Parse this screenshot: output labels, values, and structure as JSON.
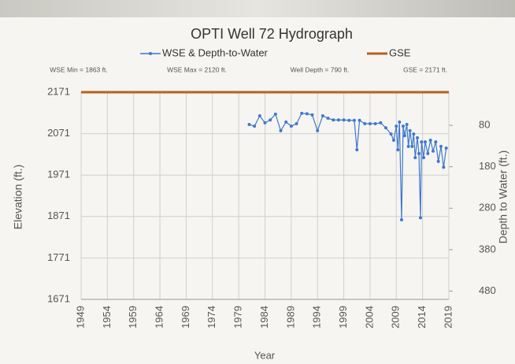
{
  "chart_data": {
    "type": "line",
    "title": "OPTI Well 72 Hydrograph",
    "annotations": [
      "WSE Min = 1863 ft.",
      "WSE Max = 2120 ft.",
      "Well Depth = 790 ft.",
      "GSE = 2171 ft."
    ],
    "xlabel": "Year",
    "ylabel": "Elevation (ft.)",
    "y2label": "Depth to Water (ft.)",
    "xlim": [
      1949,
      2019
    ],
    "xticks": [
      1949,
      1954,
      1959,
      1964,
      1969,
      1974,
      1979,
      1984,
      1989,
      1994,
      1999,
      2004,
      2009,
      2014,
      2019
    ],
    "ylim": [
      1671,
      2171
    ],
    "yticks": [
      1671,
      1771,
      1871,
      1971,
      2071,
      2171
    ],
    "y2lim": [
      500,
      0
    ],
    "y2ticks": [
      80,
      180,
      280,
      380,
      480
    ],
    "grid": true,
    "legend": "top",
    "series": [
      {
        "name": "WSE & Depth-to-Water",
        "color": "#3f78cf",
        "x": [
          1981,
          1982,
          1983,
          1984,
          1985,
          1986,
          1987,
          1988,
          1989,
          1990,
          1991,
          1992,
          1993,
          1994,
          1995,
          1996,
          1997,
          1998,
          1999,
          2000,
          2001,
          2001.5,
          2002,
          2003,
          2004,
          2005,
          2006,
          2007,
          2008,
          2008.5,
          2009,
          2009.3,
          2009.6,
          2010,
          2010.3,
          2010.6,
          2011,
          2011.3,
          2011.6,
          2012,
          2012.3,
          2012.6,
          2013,
          2013.3,
          2013.6,
          2013.8,
          2014.2,
          2014.5,
          2015,
          2015.5,
          2016,
          2016.5,
          2017,
          2017.5,
          2018,
          2018.5
        ],
        "values": [
          2093,
          2089,
          2114,
          2097,
          2104,
          2118,
          2078,
          2099,
          2089,
          2095,
          2120,
          2119,
          2116,
          2078,
          2114,
          2108,
          2104,
          2104,
          2104,
          2103,
          2103,
          2032,
          2103,
          2095,
          2095,
          2095,
          2097,
          2085,
          2070,
          2055,
          2089,
          2032,
          2099,
          1863,
          2089,
          2066,
          2093,
          2040,
          2078,
          2040,
          2070,
          2013,
          2061,
          2023,
          1868,
          2051,
          2013,
          2051,
          2023,
          2055,
          2029,
          2051,
          2004,
          2040,
          1990,
          2036
        ]
      },
      {
        "name": "GSE",
        "color": "#b8601c",
        "x": [
          1949,
          2019
        ],
        "values": [
          2171,
          2171
        ]
      }
    ]
  }
}
